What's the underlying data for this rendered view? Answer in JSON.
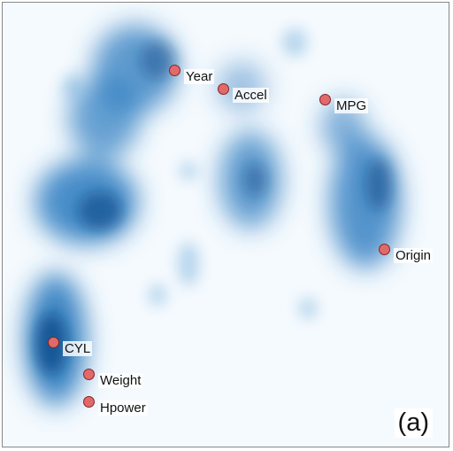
{
  "panel_label": "(a)",
  "colors": {
    "density": "#1f6fb4",
    "background": "#f5fafe",
    "marker": "#e06a6a"
  },
  "features": [
    {
      "name": "Year",
      "label": "Year"
    },
    {
      "name": "Accel",
      "label": "Accel"
    },
    {
      "name": "MPG",
      "label": "MPG"
    },
    {
      "name": "Origin",
      "label": "Origin"
    },
    {
      "name": "CYL",
      "label": "CYL"
    },
    {
      "name": "Weight",
      "label": "Weight"
    },
    {
      "name": "Hpower",
      "label": "Hpower"
    }
  ]
}
